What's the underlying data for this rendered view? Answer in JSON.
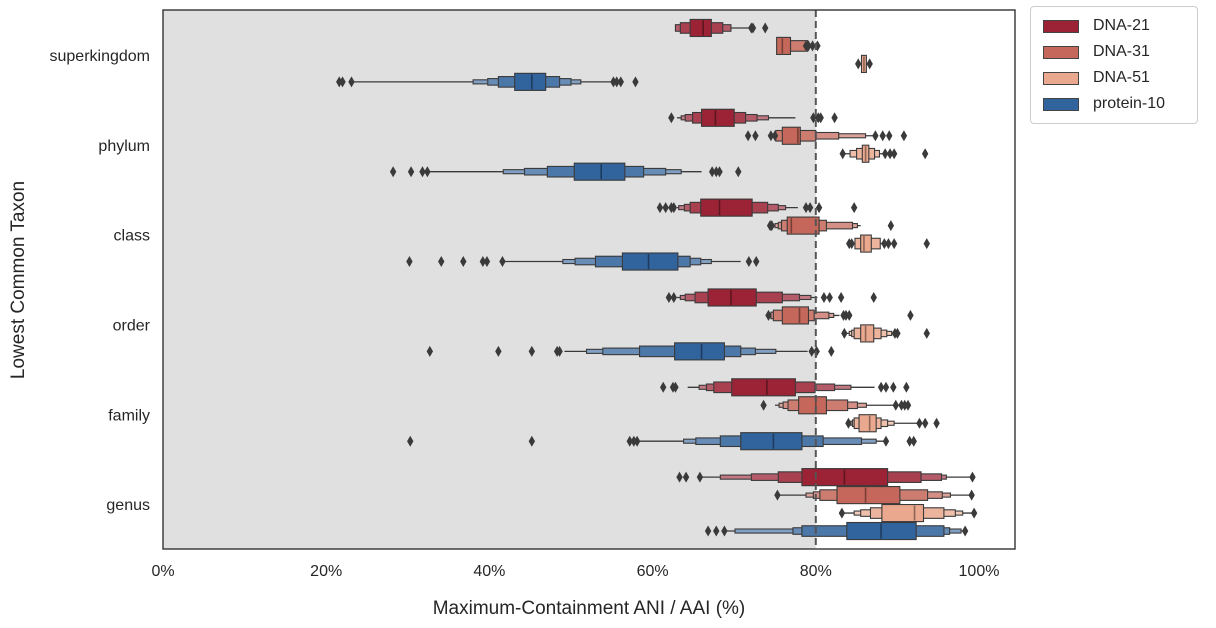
{
  "chart_data": {
    "type": "boxen",
    "orientation": "horizontal",
    "title": "",
    "xlabel": "Maximum-Containment ANI / AAI (%)",
    "ylabel": "Lowest Common Taxon",
    "xlim": [
      0,
      104.5
    ],
    "xticks": [
      0,
      20,
      40,
      60,
      80,
      100
    ],
    "xtick_labels": [
      "0%",
      "20%",
      "40%",
      "60%",
      "80%",
      "100%"
    ],
    "grid": false,
    "shaded_region": {
      "from": 0,
      "to": 80,
      "color": "#e0e0e0"
    },
    "reference_line": {
      "x": 80,
      "style": "dashed",
      "color": "#555555"
    },
    "categories": [
      "superkingdom",
      "phylum",
      "class",
      "order",
      "family",
      "genus"
    ],
    "legend": {
      "placement": "outside-top-right",
      "entries": [
        {
          "name": "DNA-21",
          "color": "#9b2335"
        },
        {
          "name": "DNA-31",
          "color": "#c5685b"
        },
        {
          "name": "DNA-51",
          "color": "#eaa98e"
        },
        {
          "name": "protein-10",
          "color": "#31639c"
        }
      ]
    },
    "series": [
      {
        "name": "DNA-21",
        "color": "#9b2335",
        "data": {
          "superkingdom": {
            "median": 66.2,
            "levels": [
              [
                64.6,
                67.2
              ],
              [
                63.4,
                68.6
              ],
              [
                62.8,
                69.6
              ]
            ],
            "whisker": [
              62.8,
              71.9
            ],
            "outliers": [
              72.1,
              72.3,
              73.8
            ]
          },
          "phylum": {
            "median": 67.7,
            "levels": [
              [
                66.0,
                70.0
              ],
              [
                64.9,
                71.4
              ],
              [
                64.0,
                72.8
              ],
              [
                63.5,
                74.2
              ]
            ],
            "whisker": [
              63.0,
              77.5
            ],
            "outliers": [
              62.3,
              79.7,
              80.3,
              80.6,
              82.3
            ]
          },
          "class": {
            "median": 68.2,
            "levels": [
              [
                65.9,
                72.2
              ],
              [
                64.6,
                74.1
              ],
              [
                63.9,
                75.4
              ],
              [
                63.2,
                76.3
              ]
            ],
            "whisker": [
              63.0,
              77.8
            ],
            "outliers": [
              60.9,
              61.6,
              62.3,
              62.6,
              78.8,
              79.3,
              80.4,
              84.7
            ]
          },
          "order": {
            "median": 69.6,
            "levels": [
              [
                66.8,
                72.7
              ],
              [
                65.2,
                75.9
              ],
              [
                64.0,
                78.0
              ],
              [
                63.4,
                79.4
              ]
            ],
            "whisker": [
              63.0,
              80.2
            ],
            "outliers": [
              62.0,
              62.6,
              81.0,
              81.7,
              83.1,
              87.1
            ]
          },
          "family": {
            "median": 74.0,
            "levels": [
              [
                69.7,
                77.5
              ],
              [
                67.5,
                79.9
              ],
              [
                66.6,
                82.3
              ],
              [
                65.7,
                84.3
              ]
            ],
            "whisker": [
              64.3,
              87.2
            ],
            "outliers": [
              61.3,
              62.5,
              62.8,
              88.0,
              88.6,
              89.5,
              91.1
            ]
          },
          "genus": {
            "median": 83.5,
            "levels": [
              [
                78.3,
                88.8
              ],
              [
                75.4,
                92.9
              ],
              [
                72.1,
                95.4
              ],
              [
                68.3,
                96.0
              ]
            ],
            "whisker": [
              65.5,
              99.2
            ],
            "outliers": [
              63.3,
              64.1,
              65.8,
              99.2
            ]
          }
        }
      },
      {
        "name": "DNA-31",
        "color": "#c5685b",
        "data": {
          "superkingdom": {
            "median": 75.9,
            "levels": [
              [
                75.2,
                76.9
              ],
              [
                76.9,
                79.0
              ]
            ],
            "whisker": [
              75.2,
              79.0
            ],
            "outliers": [
              78.8,
              79.1,
              79.6,
              80.2
            ]
          },
          "phylum": {
            "median": 77.8,
            "levels": [
              [
                75.9,
                78.1
              ],
              [
                75.1,
                80.0
              ],
              [
                80.0,
                82.8
              ],
              [
                82.8,
                86.1
              ]
            ],
            "whisker": [
              75.1,
              87.2
            ],
            "outliers": [
              71.7,
              72.6,
              74.5,
              75.0,
              87.3,
              88.2,
              89.0,
              90.8
            ]
          },
          "class": {
            "median": 77.0,
            "levels": [
              [
                76.5,
                80.4
              ],
              [
                75.8,
                81.3
              ],
              [
                75.4,
                84.5
              ],
              [
                75.0,
                85.1
              ]
            ],
            "whisker": [
              75.0,
              85.5
            ],
            "outliers": [
              74.4,
              74.6,
              89.2
            ]
          },
          "order": {
            "median": 78.0,
            "levels": [
              [
                75.9,
                79.1
              ],
              [
                74.8,
                79.8
              ],
              [
                74.5,
                81.6
              ],
              [
                79.8,
                82.2
              ]
            ],
            "whisker": [
              74.4,
              82.9
            ],
            "outliers": [
              74.2,
              83.4,
              83.7,
              84.1,
              91.6
            ]
          },
          "family": {
            "median": 80.0,
            "levels": [
              [
                77.9,
                81.3
              ],
              [
                76.6,
                83.9
              ],
              [
                76.0,
                85.1
              ],
              [
                75.5,
                86.2
              ]
            ],
            "whisker": [
              75.0,
              89.5
            ],
            "outliers": [
              73.6,
              89.8,
              90.5,
              90.9,
              91.3
            ]
          },
          "genus": {
            "median": 86.1,
            "levels": [
              [
                82.6,
                90.3
              ],
              [
                80.5,
                93.7
              ],
              [
                79.7,
                95.5
              ],
              [
                78.8,
                96.5
              ]
            ],
            "whisker": [
              75.3,
              99.1
            ],
            "outliers": [
              75.3,
              99.1
            ]
          }
        }
      },
      {
        "name": "DNA-51",
        "color": "#eaa98e",
        "data": {
          "superkingdom": {
            "median": 85.9,
            "levels": [
              [
                85.6,
                86.2
              ]
            ],
            "whisker": [
              85.6,
              86.2
            ],
            "outliers": [
              85.2,
              86.6
            ]
          },
          "phylum": {
            "median": 86.1,
            "levels": [
              [
                85.7,
                86.5
              ],
              [
                85.0,
                87.2
              ],
              [
                84.2,
                87.8
              ]
            ],
            "whisker": [
              83.3,
              88.3
            ],
            "outliers": [
              83.3,
              88.5,
              89.1,
              89.6,
              93.4
            ]
          },
          "class": {
            "median": 85.9,
            "levels": [
              [
                85.5,
                86.8
              ],
              [
                84.8,
                87.9
              ]
            ],
            "whisker": [
              84.4,
              88.2
            ],
            "outliers": [
              84.1,
              84.4,
              88.4,
              88.9,
              89.6,
              93.6
            ]
          },
          "order": {
            "median": 86.1,
            "levels": [
              [
                85.5,
                87.1
              ],
              [
                84.7,
                88.0
              ],
              [
                84.4,
                88.7
              ],
              [
                84.1,
                89.3
              ]
            ],
            "whisker": [
              83.8,
              89.5
            ],
            "outliers": [
              83.5,
              89.7,
              90.0,
              93.6
            ]
          },
          "family": {
            "median": 86.6,
            "levels": [
              [
                85.3,
                87.4
              ],
              [
                84.7,
                88.0
              ],
              [
                84.5,
                88.8
              ],
              [
                84.3,
                89.6
              ]
            ],
            "whisker": [
              84.0,
              92.4
            ],
            "outliers": [
              84.0,
              92.7,
              93.4,
              94.8
            ]
          },
          "genus": {
            "median": 92.1,
            "levels": [
              [
                88.1,
                93.2
              ],
              [
                86.7,
                95.7
              ],
              [
                85.5,
                97.1
              ],
              [
                84.7,
                98.0
              ]
            ],
            "whisker": [
              83.2,
              99.4
            ],
            "outliers": [
              83.2,
              99.4
            ]
          }
        }
      },
      {
        "name": "protein-10",
        "color": "#31639c",
        "data": {
          "superkingdom": {
            "median": 45.2,
            "levels": [
              [
                43.1,
                46.9
              ],
              [
                41.1,
                48.6
              ],
              [
                39.8,
                50.0
              ],
              [
                38.0,
                51.2
              ]
            ],
            "whisker": [
              23.4,
              55.0
            ],
            "outliers": [
              21.6,
              22.0,
              23.1,
              55.2,
              55.6,
              56.1,
              57.9
            ]
          },
          "phylum": {
            "median": 53.7,
            "levels": [
              [
                50.4,
                56.6
              ],
              [
                47.1,
                58.9
              ],
              [
                44.3,
                61.6
              ],
              [
                41.7,
                63.5
              ]
            ],
            "whisker": [
              32.5,
              66.0
            ],
            "outliers": [
              28.2,
              30.4,
              31.8,
              32.4,
              67.3,
              67.8,
              68.2,
              70.5
            ]
          },
          "class": {
            "median": 59.5,
            "levels": [
              [
                56.3,
                63.1
              ],
              [
                53.0,
                64.6
              ],
              [
                50.5,
                65.9
              ],
              [
                49.0,
                67.2
              ]
            ],
            "whisker": [
              41.6,
              70.8
            ],
            "outliers": [
              30.2,
              34.1,
              36.8,
              39.2,
              39.7,
              41.6,
              71.8,
              72.7
            ]
          },
          "order": {
            "median": 66.0,
            "levels": [
              [
                62.7,
                68.8
              ],
              [
                58.4,
                70.8
              ],
              [
                53.9,
                72.6
              ],
              [
                51.9,
                75.1
              ]
            ],
            "whisker": [
              49.2,
              79.0
            ],
            "outliers": [
              32.7,
              41.1,
              45.2,
              48.3,
              48.6,
              79.5,
              80.1,
              81.9
            ]
          },
          "family": {
            "median": 74.8,
            "levels": [
              [
                70.8,
                78.3
              ],
              [
                68.3,
                80.9
              ],
              [
                65.3,
                85.6
              ],
              [
                63.8,
                87.4
              ]
            ],
            "whisker": [
              58.1,
              88.3
            ],
            "outliers": [
              30.3,
              45.2,
              57.2,
              57.7,
              58.1,
              88.6,
              91.5,
              92.0
            ]
          },
          "genus": {
            "median": 88.0,
            "levels": [
              [
                83.8,
                92.3
              ],
              [
                78.3,
                95.7
              ],
              [
                77.2,
                96.4
              ],
              [
                70.1,
                97.8
              ]
            ],
            "whisker": [
              69.0,
              98.3
            ],
            "outliers": [
              66.8,
              67.8,
              68.8,
              98.3
            ]
          }
        }
      }
    ]
  }
}
